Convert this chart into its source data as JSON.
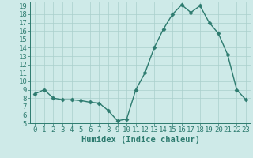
{
  "x": [
    0,
    1,
    2,
    3,
    4,
    5,
    6,
    7,
    8,
    9,
    10,
    11,
    12,
    13,
    14,
    15,
    16,
    17,
    18,
    19,
    20,
    21,
    22,
    23
  ],
  "y": [
    8.5,
    9.0,
    8.0,
    7.8,
    7.8,
    7.7,
    7.5,
    7.4,
    6.5,
    5.3,
    5.5,
    9.0,
    11.0,
    14.0,
    16.2,
    18.0,
    19.1,
    18.2,
    19.0,
    17.0,
    15.7,
    13.2,
    9.0,
    7.8
  ],
  "line_color": "#2e7d6e",
  "marker": "D",
  "markersize": 2.5,
  "linewidth": 1.0,
  "xlabel": "Humidex (Indice chaleur)",
  "xlim": [
    -0.5,
    23.5
  ],
  "ylim": [
    5,
    19.5
  ],
  "yticks": [
    5,
    6,
    7,
    8,
    9,
    10,
    11,
    12,
    13,
    14,
    15,
    16,
    17,
    18,
    19
  ],
  "xticks": [
    0,
    1,
    2,
    3,
    4,
    5,
    6,
    7,
    8,
    9,
    10,
    11,
    12,
    13,
    14,
    15,
    16,
    17,
    18,
    19,
    20,
    21,
    22,
    23
  ],
  "bg_color": "#ceeae8",
  "grid_color": "#aacfcc",
  "line_col": "#2d7b6f",
  "font_size": 6.5,
  "xlabel_fontsize": 7.5
}
